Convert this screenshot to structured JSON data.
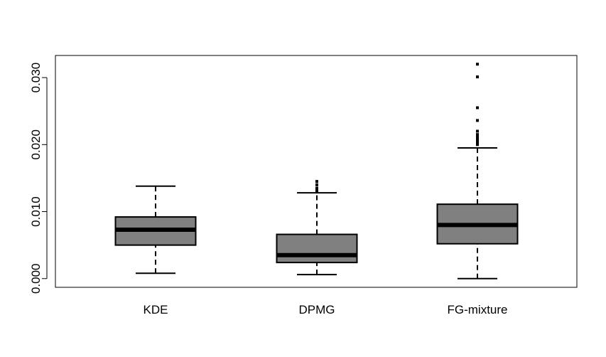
{
  "chart_data": {
    "type": "boxplot",
    "title": "",
    "xlabel": "",
    "ylabel": "",
    "ylim": [
      -0.0013,
      0.0333
    ],
    "yticks": [
      0.0,
      0.01,
      0.02,
      0.03
    ],
    "ytick_labels": [
      "0.000",
      "0.010",
      "0.020",
      "0.030"
    ],
    "grid": false,
    "legend": "none",
    "box_color": "#808080",
    "categories": [
      "KDE",
      "DPMG",
      "FG-mixture"
    ],
    "boxes": [
      {
        "category": "KDE",
        "whisker_low": 0.0008,
        "q1": 0.005,
        "median": 0.0073,
        "q3": 0.0092,
        "whisker_high": 0.0138,
        "outliers": []
      },
      {
        "category": "DPMG",
        "whisker_low": 0.0006,
        "q1": 0.0024,
        "median": 0.0035,
        "q3": 0.0066,
        "whisker_high": 0.0128,
        "outliers": [
          0.0131,
          0.0135,
          0.014,
          0.0145
        ]
      },
      {
        "category": "FG-mixture",
        "whisker_low": 0.0,
        "q1": 0.0052,
        "median": 0.008,
        "q3": 0.0111,
        "whisker_high": 0.0195,
        "outliers": [
          0.02,
          0.0203,
          0.0207,
          0.0211,
          0.0215,
          0.022,
          0.0236,
          0.0255,
          0.0301,
          0.032
        ]
      }
    ]
  }
}
